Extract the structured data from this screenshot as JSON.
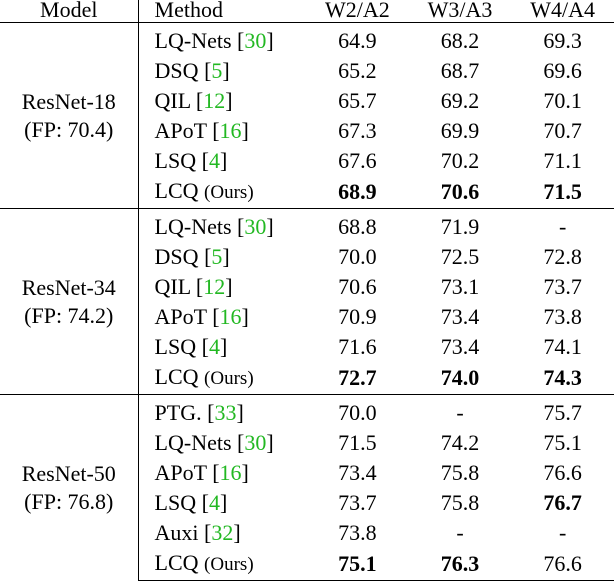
{
  "header": {
    "model": "Model",
    "method": "Method",
    "w2a2": "W2/A2",
    "w3a3": "W3/A3",
    "w4a4": "W4/A4"
  },
  "groups": [
    {
      "model_name": "ResNet-18",
      "model_fp": "(FP: 70.4)",
      "rows": [
        {
          "method": "LQ-Nets ",
          "cite": "30",
          "suffix": "",
          "values": [
            "64.9",
            "68.2",
            "69.3"
          ],
          "best": [
            false,
            false,
            false
          ]
        },
        {
          "method": "DSQ ",
          "cite": "5",
          "suffix": "",
          "values": [
            "65.2",
            "68.7",
            "69.6"
          ],
          "best": [
            false,
            false,
            false
          ]
        },
        {
          "method": "QIL ",
          "cite": "12",
          "suffix": "",
          "values": [
            "65.7",
            "69.2",
            "70.1"
          ],
          "best": [
            false,
            false,
            false
          ]
        },
        {
          "method": "APoT ",
          "cite": "16",
          "suffix": "",
          "values": [
            "67.3",
            "69.9",
            "70.7"
          ],
          "best": [
            false,
            false,
            false
          ]
        },
        {
          "method": "LSQ ",
          "cite": "4",
          "suffix": "",
          "values": [
            "67.6",
            "70.2",
            "71.1"
          ],
          "best": [
            false,
            false,
            false
          ]
        },
        {
          "method": "LCQ ",
          "cite": "",
          "suffix": "(Ours)",
          "values": [
            "68.9",
            "70.6",
            "71.5"
          ],
          "best": [
            true,
            true,
            true
          ]
        }
      ]
    },
    {
      "model_name": "ResNet-34",
      "model_fp": "(FP: 74.2)",
      "rows": [
        {
          "method": "LQ-Nets ",
          "cite": "30",
          "suffix": "",
          "values": [
            "68.8",
            "71.9",
            "-"
          ],
          "best": [
            false,
            false,
            false
          ]
        },
        {
          "method": "DSQ ",
          "cite": "5",
          "suffix": "",
          "values": [
            "70.0",
            "72.5",
            "72.8"
          ],
          "best": [
            false,
            false,
            false
          ]
        },
        {
          "method": "QIL ",
          "cite": "12",
          "suffix": "",
          "values": [
            "70.6",
            "73.1",
            "73.7"
          ],
          "best": [
            false,
            false,
            false
          ]
        },
        {
          "method": "APoT ",
          "cite": "16",
          "suffix": "",
          "values": [
            "70.9",
            "73.4",
            "73.8"
          ],
          "best": [
            false,
            false,
            false
          ]
        },
        {
          "method": "LSQ ",
          "cite": "4",
          "suffix": "",
          "values": [
            "71.6",
            "73.4",
            "74.1"
          ],
          "best": [
            false,
            false,
            false
          ]
        },
        {
          "method": "LCQ ",
          "cite": "",
          "suffix": "(Ours)",
          "values": [
            "72.7",
            "74.0",
            "74.3"
          ],
          "best": [
            true,
            true,
            true
          ]
        }
      ]
    },
    {
      "model_name": "ResNet-50",
      "model_fp": "(FP: 76.8)",
      "rows": [
        {
          "method": "PTG. ",
          "cite": "33",
          "suffix": "",
          "values": [
            "70.0",
            "-",
            "75.7"
          ],
          "best": [
            false,
            false,
            false
          ]
        },
        {
          "method": "LQ-Nets ",
          "cite": "30",
          "suffix": "",
          "values": [
            "71.5",
            "74.2",
            "75.1"
          ],
          "best": [
            false,
            false,
            false
          ]
        },
        {
          "method": "APoT ",
          "cite": "16",
          "suffix": "",
          "values": [
            "73.4",
            "75.8",
            "76.6"
          ],
          "best": [
            false,
            false,
            false
          ]
        },
        {
          "method": "LSQ ",
          "cite": "4",
          "suffix": "",
          "values": [
            "73.7",
            "75.8",
            "76.7"
          ],
          "best": [
            false,
            false,
            true
          ]
        },
        {
          "method": "Auxi ",
          "cite": "32",
          "suffix": "",
          "values": [
            "73.8",
            "-",
            "-"
          ],
          "best": [
            false,
            false,
            false
          ]
        },
        {
          "method": "LCQ ",
          "cite": "",
          "suffix": "(Ours)",
          "values": [
            "75.1",
            "76.3",
            "76.6"
          ],
          "best": [
            true,
            true,
            false
          ]
        }
      ]
    }
  ],
  "colors": {
    "citation": "#22b822",
    "text": "#000000",
    "background": "#ffffff"
  }
}
